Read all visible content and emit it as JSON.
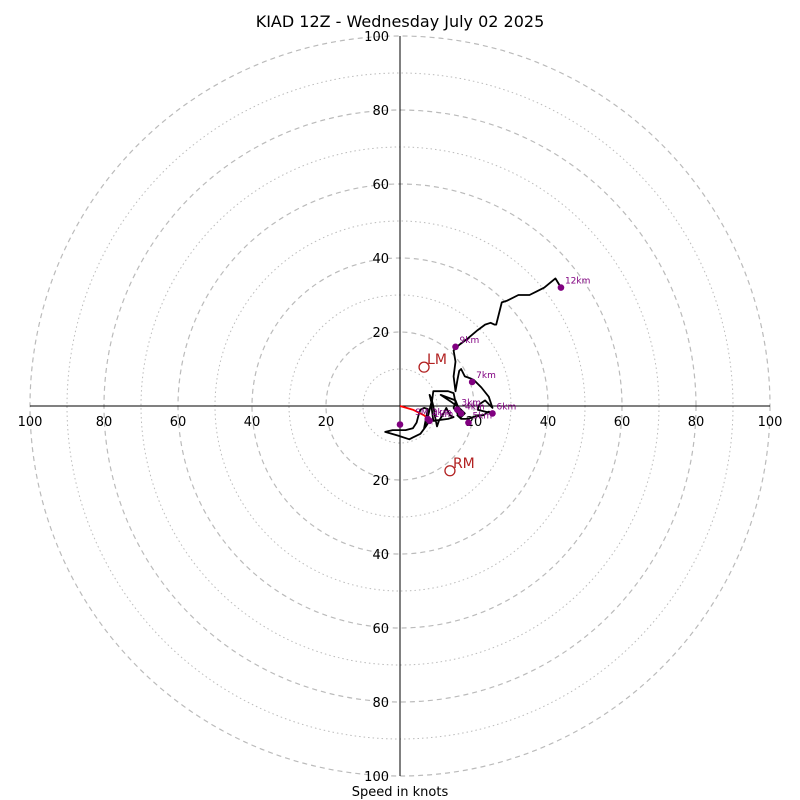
{
  "chart_data": {
    "type": "hodograph",
    "title": "KIAD 12Z - Wednesday July 02 2025",
    "xlabel": "Speed in knots",
    "range_max": 100,
    "ring_major": [
      20,
      40,
      60,
      80,
      100
    ],
    "ring_minor": [
      10,
      30,
      50,
      70,
      90
    ],
    "tick_labels": {
      "left": [
        "100",
        "80",
        "60",
        "40",
        "20"
      ],
      "right": [
        "20",
        "40",
        "60",
        "80",
        "100"
      ],
      "top": [
        "100",
        "80",
        "60",
        "40",
        "20"
      ],
      "bottom": [
        "20",
        "40",
        "60",
        "80",
        "100"
      ]
    },
    "colors": {
      "trace": "#000000",
      "low_level_segment": "#ff0000",
      "height_marker": "#800080",
      "storm_motion": "#b22222",
      "ring": "#bbbbbb",
      "axis": "#000000"
    },
    "red_segment": [
      [
        0.0,
        0.0
      ],
      [
        3.5,
        -1.0
      ],
      [
        6.5,
        -2.5
      ],
      [
        8.0,
        -4.0
      ]
    ],
    "trace": [
      [
        8.0,
        -4.0
      ],
      [
        7.0,
        -5.5
      ],
      [
        5.5,
        -7.5
      ],
      [
        3.5,
        -8.5
      ],
      [
        2.5,
        -9.0
      ],
      [
        -0.5,
        -8.0
      ],
      [
        -4.0,
        -7.0
      ],
      [
        -2.0,
        -6.5
      ],
      [
        1.5,
        -6.5
      ],
      [
        3.5,
        -6.0
      ],
      [
        4.5,
        -4.5
      ],
      [
        5.0,
        -2.5
      ],
      [
        5.5,
        -1.0
      ],
      [
        6.5,
        -0.5
      ],
      [
        7.5,
        -0.8
      ],
      [
        7.0,
        -3.5
      ],
      [
        6.5,
        -6.0
      ],
      [
        7.5,
        -3.0
      ],
      [
        8.5,
        1.0
      ],
      [
        8.0,
        3.0
      ],
      [
        8.5,
        2.0
      ],
      [
        9.0,
        0.0
      ],
      [
        9.5,
        -3.0
      ],
      [
        10.0,
        -5.5
      ],
      [
        10.5,
        -4.0
      ],
      [
        11.5,
        -2.5
      ],
      [
        12.5,
        -0.5
      ],
      [
        13.5,
        -2.5
      ],
      [
        14.5,
        -3.0
      ],
      [
        13.0,
        -3.5
      ],
      [
        9.0,
        -4.0
      ],
      [
        8.5,
        0.0
      ],
      [
        9.0,
        4.0
      ],
      [
        13.0,
        4.0
      ],
      [
        14.5,
        3.5
      ],
      [
        15.0,
        1.0
      ],
      [
        14.5,
        -0.5
      ],
      [
        15.5,
        -2.0
      ],
      [
        16.5,
        -3.0
      ],
      [
        17.5,
        -2.0
      ],
      [
        16.0,
        -0.5
      ],
      [
        14.0,
        1.0
      ],
      [
        11.0,
        3.0
      ],
      [
        15.0,
        1.5
      ],
      [
        16.0,
        -1.0
      ],
      [
        15.5,
        -2.5
      ],
      [
        16.5,
        -3.5
      ],
      [
        18.5,
        -3.5
      ],
      [
        21.0,
        -2.5
      ],
      [
        22.5,
        -2.5
      ],
      [
        24.0,
        -1.5
      ],
      [
        25.0,
        -2.0
      ],
      [
        23.0,
        -1.5
      ],
      [
        21.0,
        -1.0
      ],
      [
        21.5,
        0.5
      ],
      [
        23.0,
        1.5
      ],
      [
        25.0,
        -0.5
      ],
      [
        24.0,
        2.5
      ],
      [
        22.0,
        5.0
      ],
      [
        20.0,
        7.0
      ],
      [
        19.0,
        7.5
      ],
      [
        17.5,
        8.0
      ],
      [
        16.5,
        10.0
      ],
      [
        16.0,
        9.5
      ],
      [
        15.5,
        7.0
      ],
      [
        15.0,
        4.0
      ],
      [
        14.5,
        8.0
      ],
      [
        15.0,
        12.0
      ],
      [
        14.5,
        15.0
      ],
      [
        16.0,
        16.5
      ],
      [
        18.0,
        18.0
      ],
      [
        21.0,
        20.5
      ],
      [
        23.0,
        22.0
      ],
      [
        24.5,
        22.5
      ],
      [
        25.5,
        22.0
      ],
      [
        26.0,
        22.0
      ],
      [
        27.5,
        28.0
      ],
      [
        29.0,
        28.5
      ],
      [
        32.0,
        30.0
      ],
      [
        35.0,
        30.0
      ],
      [
        37.0,
        31.0
      ],
      [
        39.0,
        32.0
      ],
      [
        42.0,
        34.5
      ],
      [
        43.5,
        32.0
      ]
    ],
    "height_markers": [
      {
        "label": "1km",
        "u": 8.0,
        "v": -4.0
      },
      {
        "label": "2km",
        "u": 7.5,
        "v": -3.5
      },
      {
        "label": "3km",
        "u": 15.5,
        "v": -1.0
      },
      {
        "label": "4km",
        "u": 16.5,
        "v": -2.0
      },
      {
        "label": "5km",
        "u": 18.5,
        "v": -4.5
      },
      {
        "label": "6km",
        "u": 25.0,
        "v": -2.0
      },
      {
        "label": "7km",
        "u": 19.5,
        "v": 6.5
      },
      {
        "label": "9km",
        "u": 15.0,
        "v": 16.0
      },
      {
        "label": "12km",
        "u": 43.5,
        "v": 32.0
      },
      {
        "label": "",
        "u": 0.0,
        "v": -5.0
      }
    ],
    "extra_labels": [
      {
        "text": "SM",
        "u": 3.0,
        "v": -3.5
      }
    ],
    "storm_motion": [
      {
        "label": "LM",
        "u": 6.5,
        "v": 10.5
      },
      {
        "label": "RM",
        "u": 13.5,
        "v": -17.5
      }
    ]
  }
}
